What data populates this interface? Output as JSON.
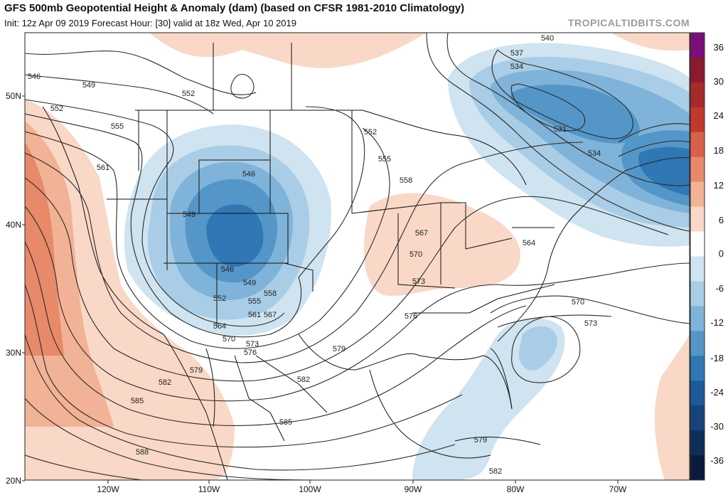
{
  "header": {
    "title": "GFS 500mb Geopotential Height & Anomaly (dam) (based on CFSR 1981-2010 Climatology)",
    "subtitle": "Init: 12z Apr 09 2019   Forecast Hour: [30]   valid at 18z Wed, Apr 10 2019",
    "brand": "TROPICALTIDBITS.COM"
  },
  "axes": {
    "lat_labels": [
      "50N",
      "40N",
      "30N",
      "20N"
    ],
    "lon_labels": [
      "120W",
      "110W",
      "100W",
      "90W",
      "80W",
      "70W"
    ]
  },
  "colorbar": {
    "labels": [
      "36",
      "30",
      "24",
      "18",
      "12",
      "6",
      "0",
      "-6",
      "-12",
      "-18",
      "-24",
      "-30",
      "-36"
    ],
    "colors": [
      "#7a0f7a",
      "#8b1a2e",
      "#a52a2a",
      "#c0392b",
      "#d9604a",
      "#e8896a",
      "#f2b295",
      "#f9d8c7",
      "#ffffff",
      "#cfe3f0",
      "#a9cde6",
      "#7fb3d9",
      "#5596c8",
      "#2f77b5",
      "#1d5a99",
      "#16447a",
      "#0e2e5a",
      "#0a1a3d"
    ]
  },
  "contour_labels": [
    {
      "text": "546"
    },
    {
      "text": "549"
    },
    {
      "text": "552"
    },
    {
      "text": "552"
    },
    {
      "text": "555"
    },
    {
      "text": "561"
    },
    {
      "text": "540"
    },
    {
      "text": "537"
    },
    {
      "text": "534"
    },
    {
      "text": "531"
    },
    {
      "text": "534"
    },
    {
      "text": "552"
    },
    {
      "text": "555"
    },
    {
      "text": "558"
    },
    {
      "text": "546"
    },
    {
      "text": "549"
    },
    {
      "text": "546"
    },
    {
      "text": "549"
    },
    {
      "text": "552"
    },
    {
      "text": "555"
    },
    {
      "text": "558"
    },
    {
      "text": "561"
    },
    {
      "text": "567"
    },
    {
      "text": "564"
    },
    {
      "text": "570"
    },
    {
      "text": "573"
    },
    {
      "text": "576"
    },
    {
      "text": "579"
    },
    {
      "text": "582"
    },
    {
      "text": "585"
    },
    {
      "text": "588"
    },
    {
      "text": "567"
    },
    {
      "text": "570"
    },
    {
      "text": "573"
    },
    {
      "text": "564"
    },
    {
      "text": "576"
    },
    {
      "text": "579"
    },
    {
      "text": "582"
    },
    {
      "text": "585"
    },
    {
      "text": "570"
    },
    {
      "text": "573"
    },
    {
      "text": "579"
    },
    {
      "text": "582"
    }
  ]
}
